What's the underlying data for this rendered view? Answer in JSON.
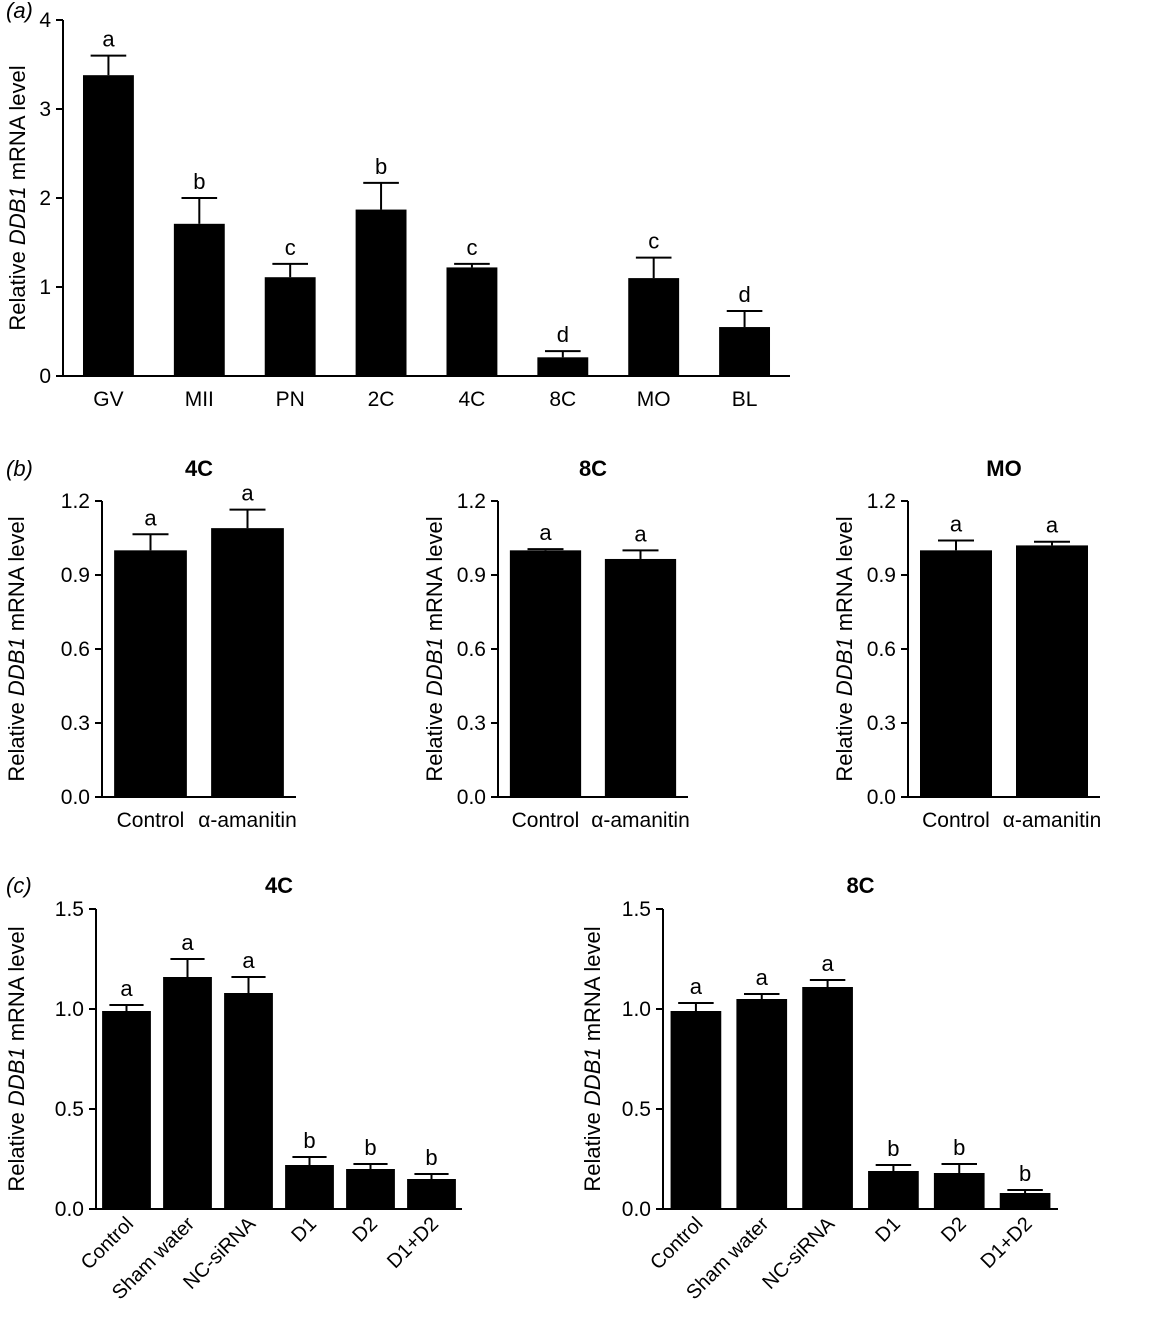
{
  "chart_data": [
    {
      "panel_label": "(a)",
      "type": "bar",
      "title": "",
      "xlabel": "",
      "ylabel_pre": "Relative ",
      "ylabel_gene": "DDB1",
      "ylabel_post": " mRNA level",
      "ylim": [
        0,
        4
      ],
      "yticks": [
        0,
        1,
        2,
        3,
        4
      ],
      "categories": [
        "GV",
        "MII",
        "PN",
        "2C",
        "4C",
        "8C",
        "MO",
        "BL"
      ],
      "values": [
        3.38,
        1.71,
        1.11,
        1.87,
        1.22,
        0.21,
        1.1,
        0.55
      ],
      "errors": [
        0.22,
        0.29,
        0.15,
        0.3,
        0.04,
        0.07,
        0.23,
        0.18
      ],
      "sig_labels": [
        "a",
        "b",
        "c",
        "b",
        "c",
        "d",
        "c",
        "d"
      ],
      "color": "#000000"
    },
    {
      "panel_label": "(b)",
      "type": "bar",
      "title": "4C",
      "ylabel_pre": "Relative ",
      "ylabel_gene": "DDB1",
      "ylabel_post": " mRNA level",
      "ylim": [
        0,
        1.2
      ],
      "yticks": [
        "0.0",
        "0.3",
        "0.6",
        "0.9",
        "1.2"
      ],
      "categories": [
        "Control",
        "α-amanitin"
      ],
      "values": [
        1.0,
        1.09
      ],
      "errors": [
        0.065,
        0.075
      ],
      "sig_labels": [
        "a",
        "a"
      ],
      "color": "#000000"
    },
    {
      "panel_label": "",
      "type": "bar",
      "title": "8C",
      "ylabel_pre": "Relative ",
      "ylabel_gene": "DDB1",
      "ylabel_post": " mRNA level",
      "ylim": [
        0,
        1.2
      ],
      "yticks": [
        "0.0",
        "0.3",
        "0.6",
        "0.9",
        "1.2"
      ],
      "categories": [
        "Control",
        "α-amanitin"
      ],
      "values": [
        1.0,
        0.965
      ],
      "errors": [
        0.005,
        0.035
      ],
      "sig_labels": [
        "a",
        "a"
      ],
      "color": "#000000"
    },
    {
      "panel_label": "",
      "type": "bar",
      "title": "MO",
      "ylabel_pre": "Relative ",
      "ylabel_gene": "DDB1",
      "ylabel_post": " mRNA level",
      "ylim": [
        0,
        1.2
      ],
      "yticks": [
        "0.0",
        "0.3",
        "0.6",
        "0.9",
        "1.2"
      ],
      "categories": [
        "Control",
        "α-amanitin"
      ],
      "values": [
        1.0,
        1.02
      ],
      "errors": [
        0.04,
        0.015
      ],
      "sig_labels": [
        "a",
        "a"
      ],
      "color": "#000000"
    },
    {
      "panel_label": "(c)",
      "type": "bar",
      "title": "4C",
      "ylabel_pre": "Relative ",
      "ylabel_gene": "DDB1",
      "ylabel_post": " mRNA level",
      "ylim": [
        0,
        1.5
      ],
      "yticks": [
        "0.0",
        "0.5",
        "1.0",
        "1.5"
      ],
      "categories": [
        "Control",
        "Sham water",
        "NC-siRNA",
        "D1",
        "D2",
        "D1+D2"
      ],
      "values": [
        0.99,
        1.16,
        1.08,
        0.22,
        0.2,
        0.15
      ],
      "errors": [
        0.03,
        0.09,
        0.08,
        0.04,
        0.025,
        0.025
      ],
      "sig_labels": [
        "a",
        "a",
        "a",
        "b",
        "b",
        "b"
      ],
      "color": "#000000"
    },
    {
      "panel_label": "",
      "type": "bar",
      "title": "8C",
      "ylabel_pre": "Relative ",
      "ylabel_gene": "DDB1",
      "ylabel_post": " mRNA level",
      "ylim": [
        0,
        1.5
      ],
      "yticks": [
        "0.0",
        "0.5",
        "1.0",
        "1.5"
      ],
      "categories": [
        "Control",
        "Sham water",
        "NC-siRNA",
        "D1",
        "D2",
        "D1+D2"
      ],
      "values": [
        0.99,
        1.05,
        1.11,
        0.19,
        0.18,
        0.08
      ],
      "errors": [
        0.04,
        0.025,
        0.035,
        0.03,
        0.045,
        0.015
      ],
      "sig_labels": [
        "a",
        "a",
        "a",
        "b",
        "b",
        "b"
      ],
      "color": "#000000"
    }
  ]
}
